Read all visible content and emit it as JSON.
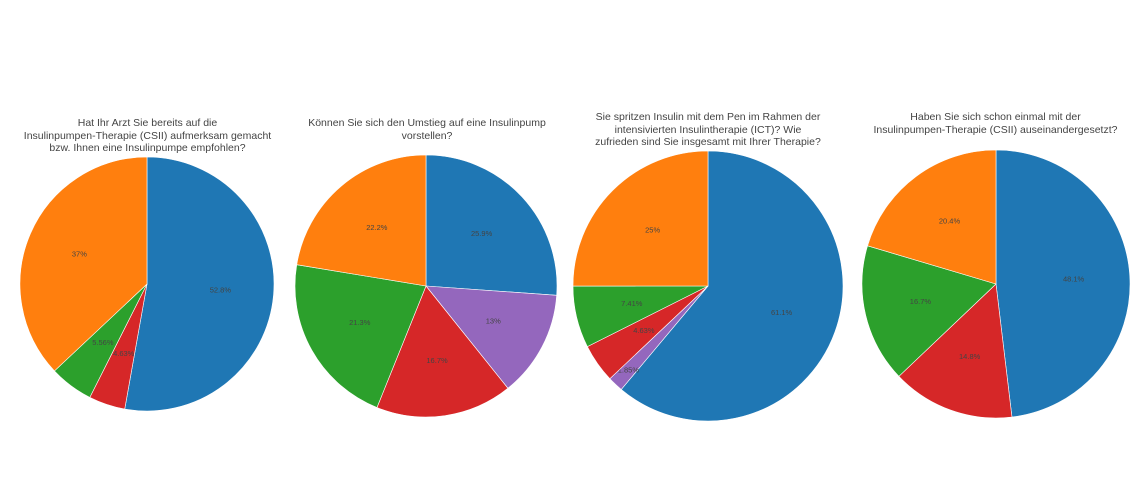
{
  "colors": {
    "blue": "#1f77b4",
    "orange": "#ff7f0e",
    "green": "#2ca02c",
    "red": "#d62728",
    "purple": "#9467bd"
  },
  "chart_data": [
    {
      "type": "pie",
      "title_lines": [
        "Hat Ihr Arzt Sie bereits auf die",
        "Insulinpumpen-Therapie (CSII) aufmerksam gemacht",
        "bzw. Ihnen eine Insulinpumpe empfohlen?"
      ],
      "slices": [
        {
          "value": 52.8,
          "label": "52.8%",
          "color": "#1f77b4"
        },
        {
          "value": 4.63,
          "label": "4.63%",
          "color": "#d62728"
        },
        {
          "value": 5.56,
          "label": "5.56%",
          "color": "#2ca02c"
        },
        {
          "value": 37,
          "label": "37%",
          "color": "#ff7f0e"
        }
      ]
    },
    {
      "type": "pie",
      "title_lines": [
        "Können Sie sich den Umstieg auf eine Insulinpump",
        "vorstellen?"
      ],
      "slices": [
        {
          "value": 25.9,
          "label": "25.9%",
          "color": "#1f77b4"
        },
        {
          "value": 13,
          "label": "13%",
          "color": "#9467bd"
        },
        {
          "value": 16.7,
          "label": "16.7%",
          "color": "#d62728"
        },
        {
          "value": 21.3,
          "label": "21.3%",
          "color": "#2ca02c"
        },
        {
          "value": 22.2,
          "label": "22.2%",
          "color": "#ff7f0e"
        }
      ]
    },
    {
      "type": "pie",
      "title_lines": [
        "Sie spritzen Insulin mit dem Pen im Rahmen der",
        "intensivierten Insulintherapie (ICT)? Wie",
        "zufrieden sind Sie insgesamt mit Ihrer Therapie?"
      ],
      "slices": [
        {
          "value": 61.1,
          "label": "61.1%",
          "color": "#1f77b4"
        },
        {
          "value": 1.85,
          "label": "1.85%",
          "color": "#9467bd"
        },
        {
          "value": 4.63,
          "label": "4.63%",
          "color": "#d62728"
        },
        {
          "value": 7.41,
          "label": "7.41%",
          "color": "#2ca02c"
        },
        {
          "value": 25,
          "label": "25%",
          "color": "#ff7f0e"
        }
      ]
    },
    {
      "type": "pie",
      "title_lines": [
        "Haben Sie sich schon einmal mit der",
        "Insulinpumpen-Therapie (CSII) auseinandergesetzt?"
      ],
      "slices": [
        {
          "value": 48.1,
          "label": "48.1%",
          "color": "#1f77b4"
        },
        {
          "value": 14.8,
          "label": "14.8%",
          "color": "#d62728"
        },
        {
          "value": 16.7,
          "label": "16.7%",
          "color": "#2ca02c"
        },
        {
          "value": 20.4,
          "label": "20.4%",
          "color": "#ff7f0e"
        }
      ]
    }
  ]
}
